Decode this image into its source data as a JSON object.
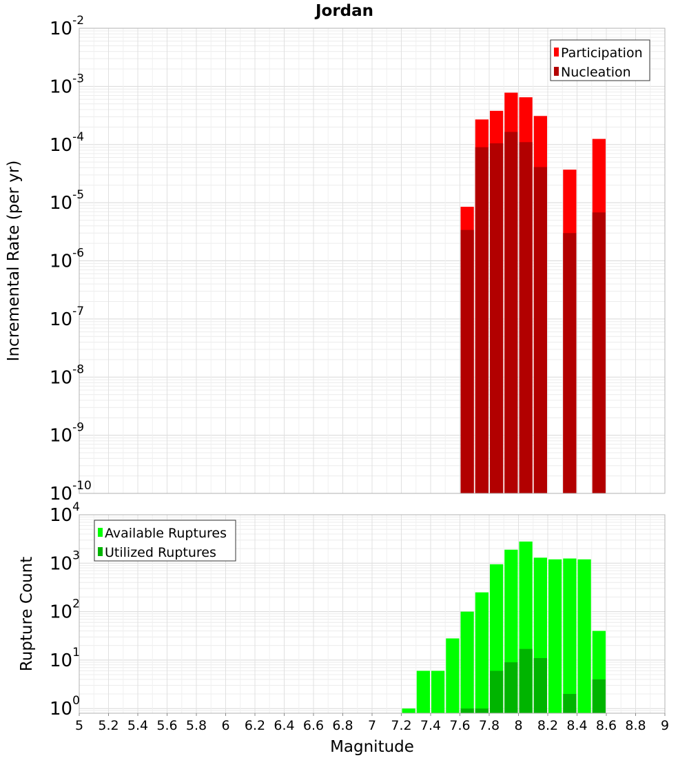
{
  "chart_data": [
    {
      "type": "bar",
      "title": "Jordan",
      "xlabel": "",
      "ylabel": "Incremental Rate (per yr)",
      "yscale": "log",
      "ylim": [
        1e-10,
        0.01
      ],
      "xlim": [
        5,
        9
      ],
      "y_tick_base": "10",
      "y_tick_exponents": [
        "-10",
        "-9",
        "-8",
        "-7",
        "-6",
        "-5",
        "-4",
        "-3",
        "-2"
      ],
      "legend_position": "top-right",
      "series": [
        {
          "name": "Participation",
          "color": "#ff0000",
          "x": [
            7.65,
            7.75,
            7.85,
            7.95,
            8.05,
            8.15,
            8.35,
            8.55
          ],
          "values": [
            8.5e-06,
            0.00027,
            0.00038,
            0.00078,
            0.00065,
            0.00031,
            3.7e-05,
            0.000125
          ]
        },
        {
          "name": "Nucleation",
          "color": "#b20000",
          "x": [
            7.65,
            7.75,
            7.85,
            7.95,
            8.05,
            8.15,
            8.35,
            8.55
          ],
          "values": [
            3.4e-06,
            9e-05,
            0.000105,
            0.000165,
            0.00011,
            4.1e-05,
            3e-06,
            6.8e-06
          ]
        }
      ]
    },
    {
      "type": "bar",
      "title": "",
      "xlabel": "Magnitude",
      "ylabel": "Rupture Count",
      "yscale": "log",
      "ylim": [
        0.8,
        10000
      ],
      "xlim": [
        5,
        9
      ],
      "x_ticks": [
        "5",
        "5.2",
        "5.4",
        "5.6",
        "5.8",
        "6",
        "6.2",
        "6.4",
        "6.6",
        "6.8",
        "7",
        "7.2",
        "7.4",
        "7.6",
        "7.8",
        "8",
        "8.2",
        "8.4",
        "8.6",
        "8.8",
        "9"
      ],
      "y_tick_base": "10",
      "y_tick_exponents": [
        "0",
        "1",
        "2",
        "3",
        "4"
      ],
      "legend_position": "top-left",
      "series": [
        {
          "name": "Available Ruptures",
          "color": "#00ff00",
          "x": [
            7.25,
            7.35,
            7.45,
            7.55,
            7.65,
            7.75,
            7.85,
            7.95,
            8.05,
            8.15,
            8.25,
            8.35,
            8.45,
            8.55
          ],
          "values": [
            1,
            6,
            6,
            28,
            100,
            250,
            950,
            1900,
            2800,
            1300,
            1200,
            1250,
            1200,
            40
          ]
        },
        {
          "name": "Utilized Ruptures",
          "color": "#00b400",
          "x": [
            7.65,
            7.75,
            7.85,
            7.95,
            8.05,
            8.15,
            8.35,
            8.55
          ],
          "values": [
            1,
            1,
            6,
            9,
            17,
            11,
            2,
            4
          ]
        }
      ]
    }
  ]
}
